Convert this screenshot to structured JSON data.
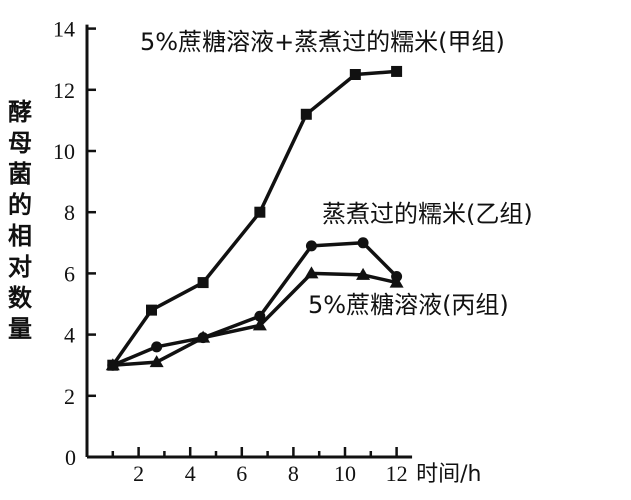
{
  "chart_data": {
    "type": "line",
    "title": "",
    "xlabel": "时间/h",
    "ylabel": "酵母菌的相对数量",
    "xlim": [
      0,
      13
    ],
    "ylim": [
      0,
      14
    ],
    "xticks": [
      2,
      4,
      6,
      8,
      10,
      12
    ],
    "yticks": [
      0,
      2,
      4,
      6,
      8,
      10,
      12,
      14
    ],
    "grid": false,
    "series": [
      {
        "name": "5%蔗糖溶液+蒸煮过的糯米(甲组)",
        "marker": "square",
        "x": [
          1,
          2.5,
          4.5,
          6.7,
          8.5,
          10.4,
          12
        ],
        "y": [
          3.0,
          4.8,
          5.7,
          8.0,
          11.2,
          12.5,
          12.6
        ]
      },
      {
        "name": "蒸煮过的糯米(乙组)",
        "marker": "circle",
        "x": [
          1,
          2.7,
          4.5,
          6.7,
          8.7,
          10.7,
          12
        ],
        "y": [
          3.0,
          3.6,
          3.9,
          4.6,
          6.9,
          7.0,
          5.9
        ]
      },
      {
        "name": "5%蔗糖溶液(丙组)",
        "marker": "triangle",
        "x": [
          1,
          2.7,
          4.5,
          6.7,
          8.7,
          10.7,
          12
        ],
        "y": [
          3.0,
          3.1,
          3.9,
          4.3,
          6.0,
          5.95,
          5.7
        ]
      }
    ]
  }
}
